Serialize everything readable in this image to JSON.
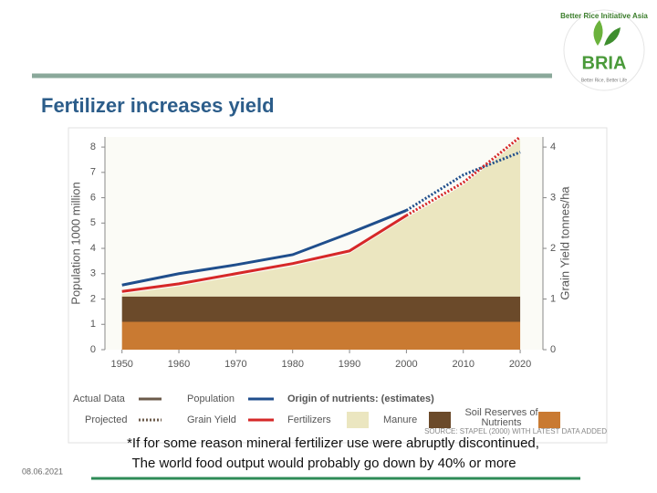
{
  "slide": {
    "title": "Fertilizer increases yield",
    "date": "08.06.2021",
    "footnote": [
      "*If for some reason mineral fertilizer use were abruptly discontinued,",
      "The world food output would probably go down by 40% or more"
    ],
    "logo": {
      "arc_text": "Better Rice Initiative Asia",
      "name": "BRIA",
      "tagline": "Better Rice, Better Life"
    }
  },
  "chart_data": {
    "type": "line",
    "y_label": "Population 1000 million",
    "y2_label": "Grain Yield tonnes/ha",
    "source": "SOURCE: STAPEL (2000) WITH LATEST DATA ADDED",
    "x": [
      1950,
      1960,
      1970,
      1980,
      1990,
      2000,
      2010,
      2020
    ],
    "xlim": [
      1947,
      2024
    ],
    "xticks": [
      1950,
      1960,
      1970,
      1980,
      1990,
      2000,
      2010,
      2020
    ],
    "ylim": [
      0,
      8.4
    ],
    "yticks": [
      0,
      1,
      2,
      3,
      4,
      5,
      6,
      7,
      8
    ],
    "y2lim": [
      0,
      4.2
    ],
    "y2ticks": [
      0,
      1,
      2,
      3,
      4
    ],
    "projected_from": 2000,
    "legend_style_labels": {
      "actual": "Actual Data",
      "projected": "Projected"
    },
    "nutrients_title": "Origin of nutrients: (estimates)",
    "series": [
      {
        "name": "Population",
        "color": "#1f4e8c",
        "values": [
          2.55,
          3.0,
          3.35,
          3.75,
          4.6,
          5.5,
          6.9,
          7.8
        ]
      },
      {
        "name": "Grain Yield",
        "color": "#d62828",
        "axis": "y2",
        "values": [
          1.15,
          1.3,
          1.5,
          1.7,
          1.95,
          2.65,
          3.3,
          4.2
        ]
      }
    ],
    "areas": [
      {
        "name": "Soil Reserves of Nutrients",
        "color": "#c97a32",
        "axis": "y2",
        "values": [
          0.55,
          0.55,
          0.55,
          0.55,
          0.55,
          0.55,
          0.55,
          0.55
        ]
      },
      {
        "name": "Manure",
        "color": "#6b4a2a",
        "axis": "y2",
        "values": [
          0.5,
          0.5,
          0.5,
          0.5,
          0.5,
          0.5,
          0.5,
          0.5
        ]
      },
      {
        "name": "Fertilizers",
        "color": "#ebe6c0",
        "axis": "y2",
        "values": [
          0.05,
          0.2,
          0.4,
          0.6,
          0.85,
          1.55,
          2.2,
          3.1
        ]
      }
    ]
  }
}
